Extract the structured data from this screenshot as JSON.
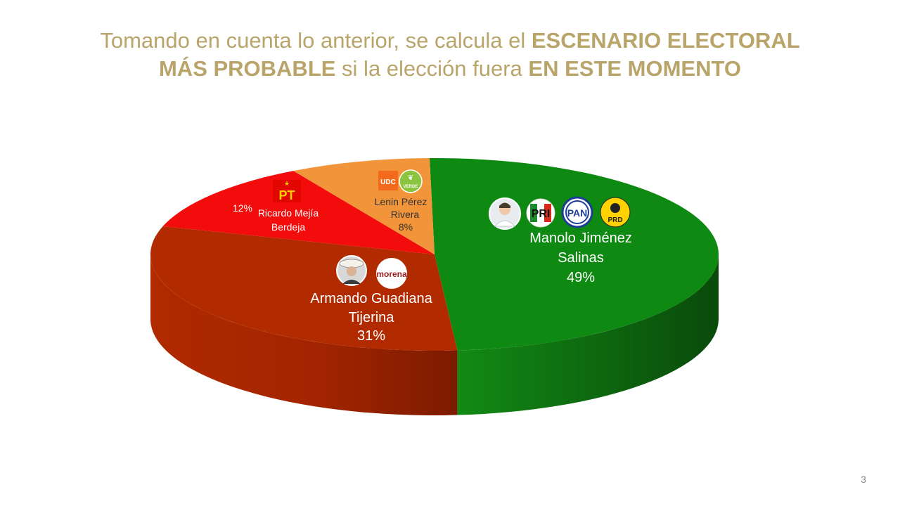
{
  "title": {
    "line1_regular": "Tomando en cuenta lo anterior, se calcula el ",
    "line1_bold": "ESCENARIO ELECTORAL",
    "line2_bold_a": "MÁS PROBABLE",
    "line2_regular": " si la elección fuera ",
    "line2_bold_b": "EN ESTE MOMENTO"
  },
  "page_number": "3",
  "party_logos": {
    "pri": "PRI",
    "pan": "PAN",
    "prd": "PRD",
    "morena": "morena",
    "pt": "PT",
    "udc": "UDC",
    "verde": "VERDE"
  },
  "chart_data": {
    "type": "pie",
    "style": "3d",
    "title": "",
    "series": [
      {
        "name": "Manolo Jiménez Salinas",
        "name_lines": [
          "Manolo Jiménez",
          "Salinas"
        ],
        "value": 49,
        "value_label": "49%",
        "color": "#0e8a12",
        "side_color": "#0b5e0d",
        "parties": [
          "PRI",
          "PAN",
          "PRD"
        ]
      },
      {
        "name": "Armando Guadiana Tijerina",
        "name_lines": [
          "Armando Guadiana",
          "Tijerina"
        ],
        "value": 31,
        "value_label": "31%",
        "color": "#b22a00",
        "side_color": "#9a2500",
        "parties": [
          "morena"
        ]
      },
      {
        "name": "Ricardo Mejía Berdeja",
        "name_lines": [
          "Ricardo Mejía",
          "Berdeja"
        ],
        "value": 12,
        "value_label": "12%",
        "color": "#f20c0c",
        "side_color": "#b00000",
        "parties": [
          "PT"
        ]
      },
      {
        "name": "Lenin Pérez Rivera",
        "name_lines": [
          "Lenin Pérez",
          "Rivera"
        ],
        "value": 8,
        "value_label": "8%",
        "color": "#f2953a",
        "side_color": "#c87020",
        "parties": [
          "UDC",
          "VERDE"
        ]
      }
    ]
  }
}
